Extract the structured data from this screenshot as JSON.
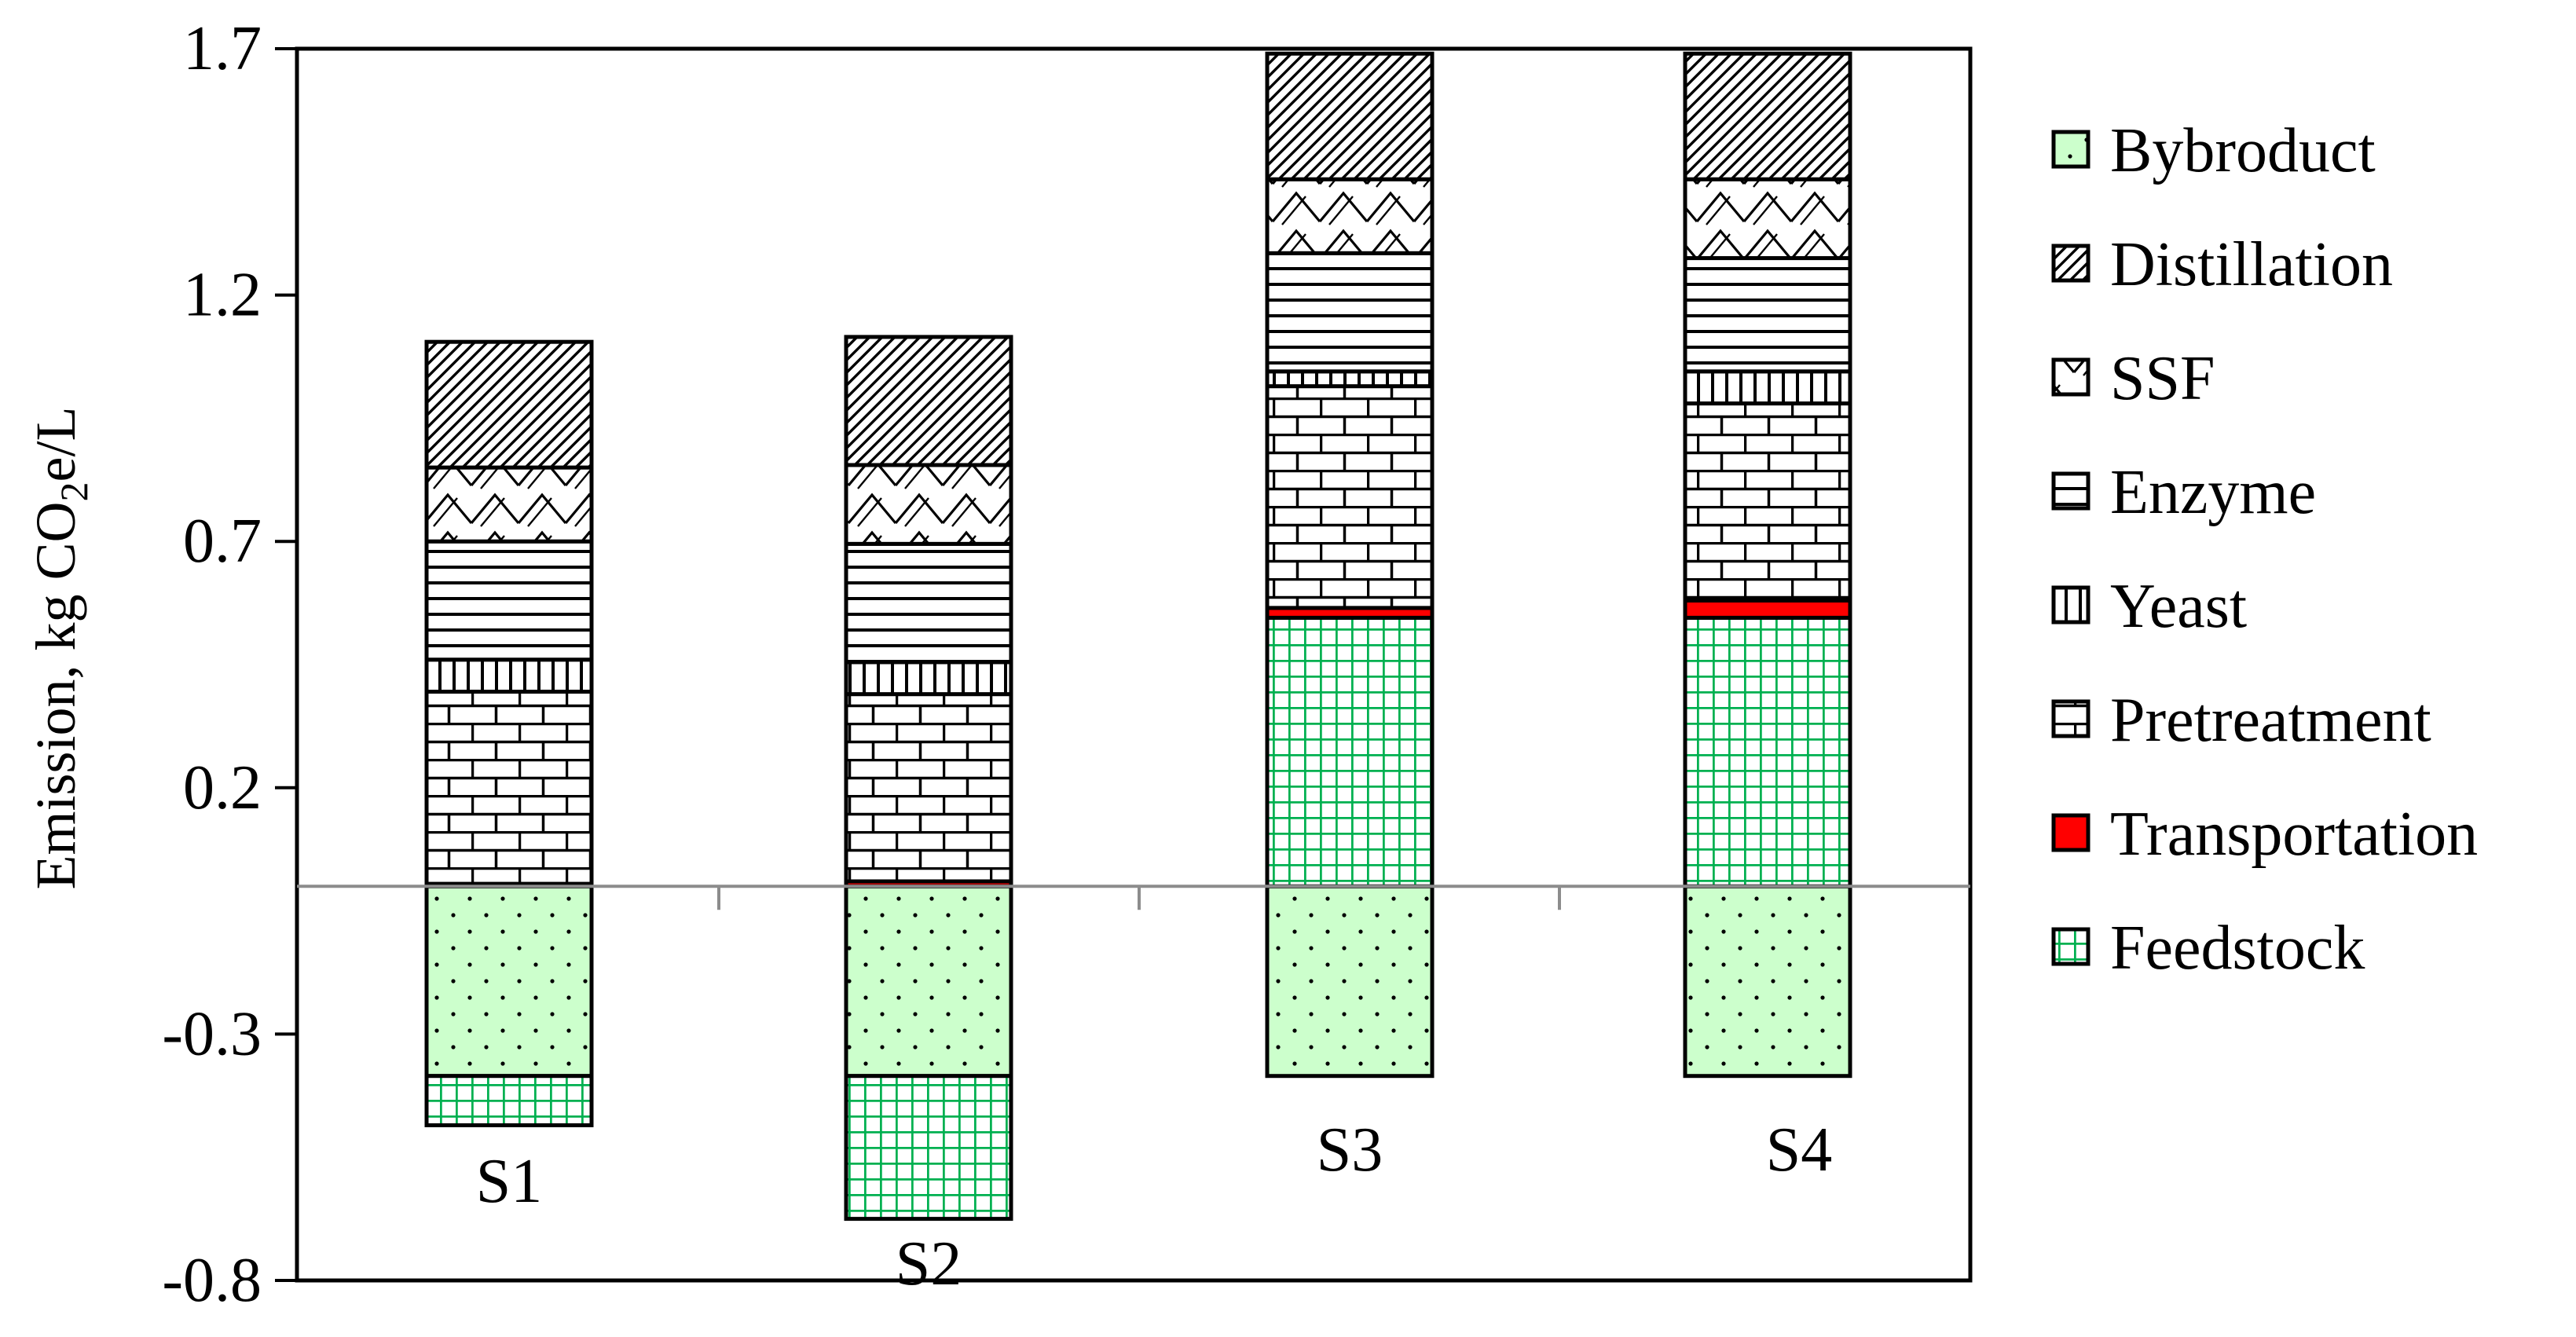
{
  "chart_data": {
    "type": "bar",
    "stacked": true,
    "title": "",
    "xlabel": "",
    "ylabel": "Emission, kg CO2e/L",
    "ylabel_parts": {
      "pre": "Emission, kg CO",
      "sub": "2",
      "post": "e/L"
    },
    "ylim": [
      -0.8,
      1.7
    ],
    "yticks": [
      "1.7",
      "1.2",
      "0.7",
      "0.2",
      "-0.3",
      "-0.8"
    ],
    "ytick_values": [
      1.7,
      1.2,
      0.7,
      0.2,
      -0.3,
      -0.8
    ],
    "categories": [
      "S1",
      "S2",
      "S3",
      "S4"
    ],
    "grid": false,
    "zero_line": true,
    "legend": "right",
    "legend_order": [
      "Bybroduct",
      "Distillation",
      "SSF",
      "Enzyme",
      "Yeast",
      "Pretreatment",
      "Transportation",
      "Feedstock"
    ],
    "series": [
      {
        "name": "Bybroduct",
        "pattern": "dots",
        "color": "#ccffcc",
        "values": [
          -0.385,
          -0.385,
          -0.385,
          -0.385
        ]
      },
      {
        "name": "Feedstock",
        "pattern": "green-grid",
        "color": "#00b050",
        "values": [
          -0.1,
          -0.29,
          0.545,
          0.545
        ]
      },
      {
        "name": "Transportation",
        "pattern": "solid-red",
        "color": "#ff0000",
        "values": [
          0.005,
          0.01,
          0.02,
          0.035
        ]
      },
      {
        "name": "Pretreatment",
        "pattern": "brick",
        "color": "#000000",
        "values": [
          0.39,
          0.38,
          0.45,
          0.4
        ]
      },
      {
        "name": "Yeast",
        "pattern": "vertical",
        "color": "#000000",
        "values": [
          0.065,
          0.065,
          0.03,
          0.065
        ]
      },
      {
        "name": "Enzyme",
        "pattern": "horizontal",
        "color": "#000000",
        "values": [
          0.24,
          0.24,
          0.24,
          0.23
        ]
      },
      {
        "name": "SSF",
        "pattern": "zigzag",
        "color": "#000000",
        "values": [
          0.15,
          0.16,
          0.15,
          0.16
        ]
      },
      {
        "name": "Distillation",
        "pattern": "diagonal",
        "color": "#000000",
        "values": [
          0.255,
          0.26,
          0.255,
          0.255
        ]
      }
    ]
  }
}
